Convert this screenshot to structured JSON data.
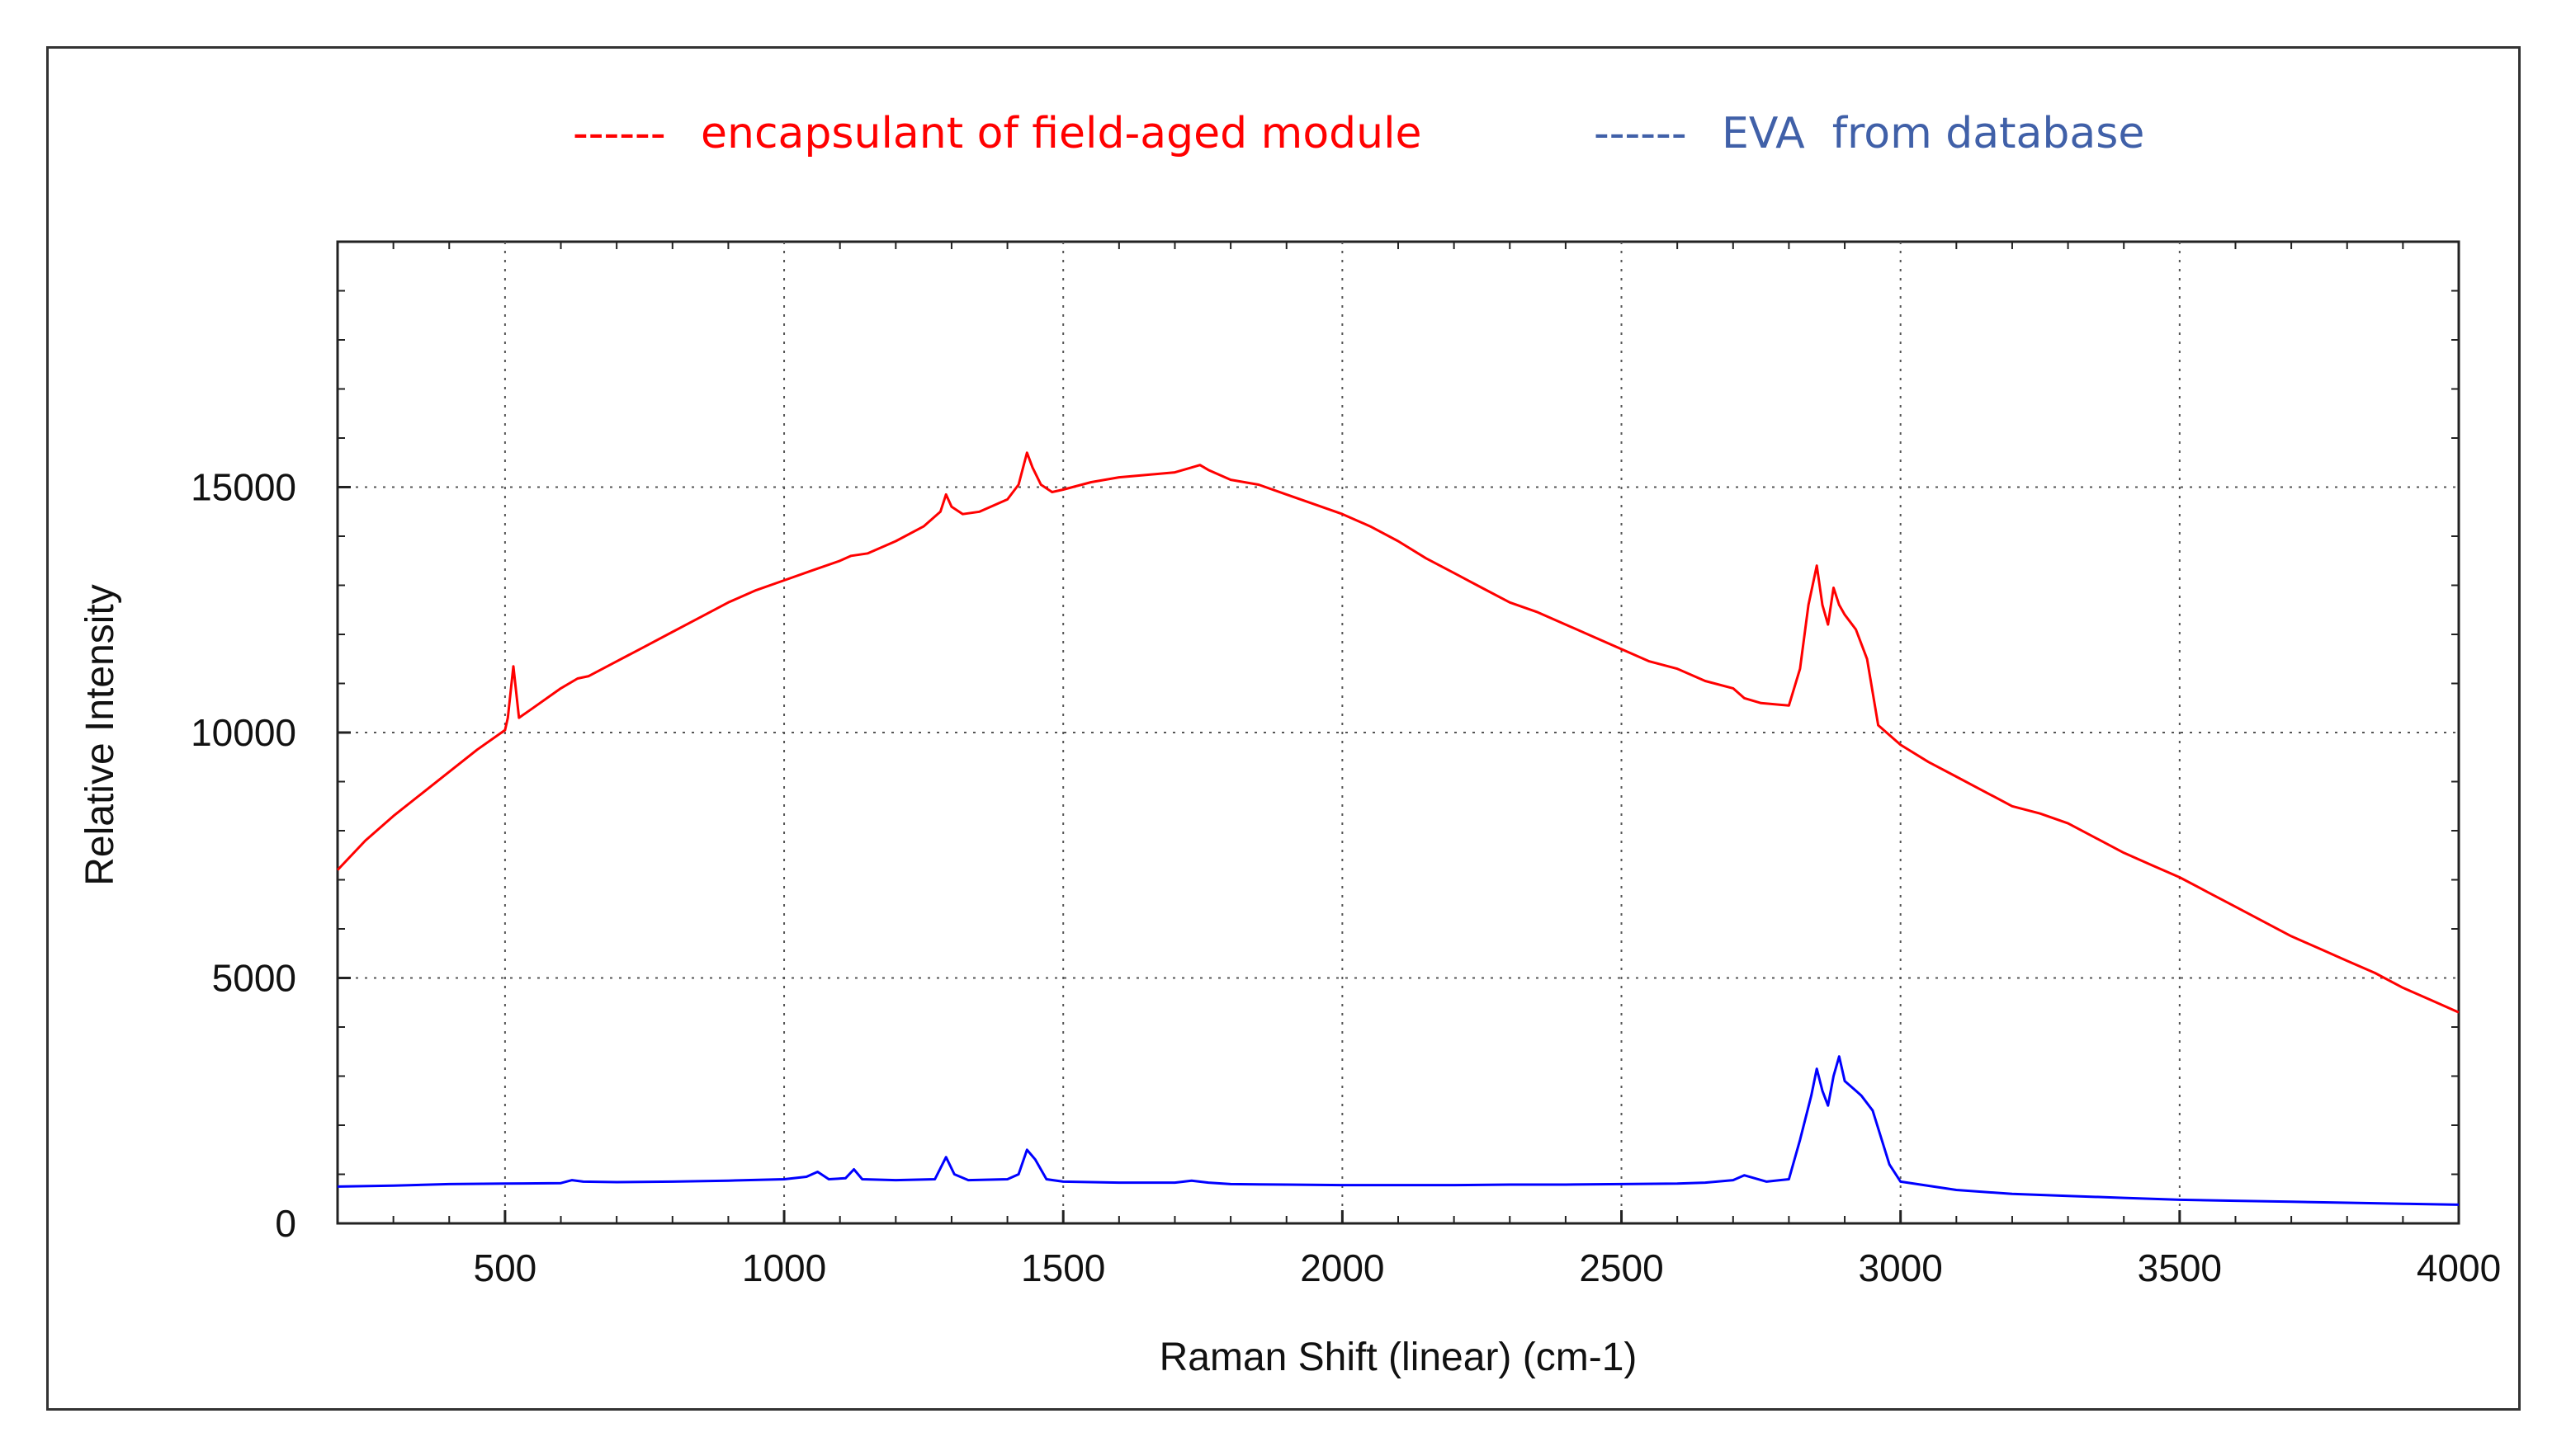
{
  "chart_data": {
    "type": "line",
    "title": "",
    "xlabel": "Raman Shift (linear) (cm-1)",
    "ylabel": "Relative Intensity",
    "xlim": [
      200,
      4000
    ],
    "ylim": [
      0,
      20000
    ],
    "grid": true,
    "legend_position": "top",
    "x_ticks": [
      500,
      1000,
      1500,
      2000,
      2500,
      3000,
      3500,
      4000
    ],
    "y_ticks": [
      0,
      5000,
      10000,
      15000
    ],
    "series": [
      {
        "name": "encapsulant of field-aged module",
        "legend_marker": "------",
        "color": "#ff0000",
        "x": [
          200,
          250,
          300,
          350,
          400,
          450,
          500,
          505,
          515,
          525,
          550,
          600,
          630,
          650,
          700,
          750,
          800,
          850,
          900,
          950,
          1000,
          1050,
          1100,
          1120,
          1150,
          1200,
          1250,
          1280,
          1290,
          1300,
          1320,
          1350,
          1400,
          1420,
          1435,
          1445,
          1460,
          1480,
          1500,
          1550,
          1600,
          1650,
          1700,
          1730,
          1745,
          1760,
          1800,
          1850,
          1900,
          1950,
          2000,
          2050,
          2100,
          2150,
          2200,
          2250,
          2300,
          2350,
          2400,
          2450,
          2500,
          2550,
          2600,
          2650,
          2700,
          2720,
          2750,
          2800,
          2820,
          2835,
          2850,
          2860,
          2870,
          2880,
          2890,
          2900,
          2920,
          2940,
          2960,
          3000,
          3050,
          3100,
          3150,
          3200,
          3250,
          3300,
          3350,
          3400,
          3450,
          3500,
          3550,
          3600,
          3650,
          3700,
          3750,
          3800,
          3850,
          3900,
          3950,
          4000
        ],
        "values": [
          7200,
          7800,
          8300,
          8750,
          9200,
          9650,
          10050,
          10300,
          11350,
          10300,
          10500,
          10900,
          11100,
          11150,
          11450,
          11750,
          12050,
          12350,
          12650,
          12900,
          13100,
          13300,
          13500,
          13600,
          13650,
          13900,
          14200,
          14500,
          14850,
          14600,
          14450,
          14500,
          14750,
          15050,
          15700,
          15400,
          15050,
          14900,
          14950,
          15100,
          15200,
          15250,
          15300,
          15400,
          15450,
          15350,
          15150,
          15050,
          14850,
          14650,
          14450,
          14200,
          13900,
          13550,
          13250,
          12950,
          12650,
          12450,
          12200,
          11950,
          11700,
          11450,
          11300,
          11050,
          10900,
          10700,
          10600,
          10550,
          11300,
          12600,
          13400,
          12600,
          12200,
          12950,
          12600,
          12400,
          12100,
          11500,
          10150,
          9750,
          9400,
          9100,
          8800,
          8500,
          8350,
          8150,
          7850,
          7550,
          7300,
          7050,
          6750,
          6450,
          6150,
          5850,
          5600,
          5350,
          5100,
          4800,
          4550,
          4300
        ]
      },
      {
        "name": "EVA  from database",
        "legend_marker": "------",
        "color": "#0000ff",
        "x": [
          200,
          300,
          400,
          500,
          600,
          620,
          640,
          700,
          800,
          900,
          1000,
          1040,
          1060,
          1080,
          1110,
          1125,
          1140,
          1200,
          1270,
          1290,
          1305,
          1330,
          1400,
          1420,
          1435,
          1450,
          1470,
          1500,
          1600,
          1700,
          1730,
          1760,
          1800,
          1900,
          2000,
          2100,
          2200,
          2300,
          2400,
          2500,
          2600,
          2650,
          2700,
          2720,
          2760,
          2800,
          2820,
          2840,
          2850,
          2860,
          2870,
          2880,
          2890,
          2900,
          2920,
          2930,
          2950,
          2980,
          3000,
          3100,
          3200,
          3300,
          3400,
          3500,
          3600,
          3700,
          3800,
          3900,
          4000
        ],
        "values": [
          750,
          770,
          800,
          810,
          820,
          880,
          850,
          840,
          850,
          870,
          900,
          950,
          1050,
          900,
          920,
          1100,
          900,
          880,
          900,
          1350,
          1000,
          880,
          900,
          1000,
          1500,
          1300,
          900,
          850,
          830,
          830,
          870,
          830,
          800,
          790,
          780,
          780,
          780,
          790,
          790,
          800,
          810,
          830,
          880,
          980,
          850,
          900,
          1700,
          2600,
          3150,
          2700,
          2400,
          3000,
          3400,
          2900,
          2700,
          2600,
          2300,
          1200,
          850,
          680,
          600,
          560,
          520,
          480,
          460,
          440,
          420,
          400,
          380
        ]
      }
    ]
  }
}
